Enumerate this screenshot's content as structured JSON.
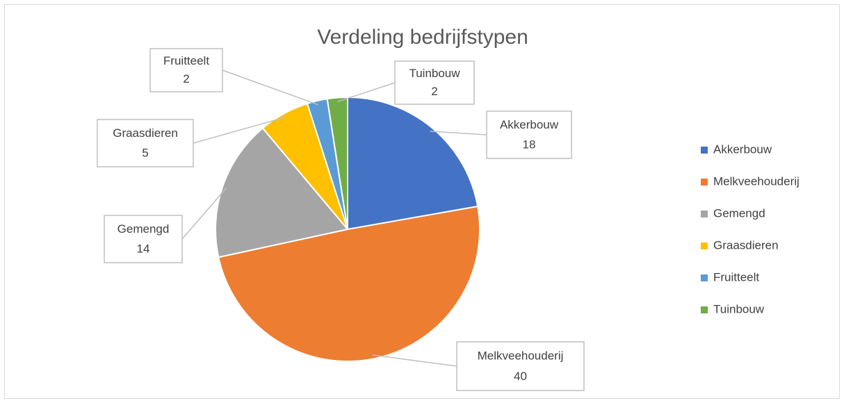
{
  "chart_data": {
    "type": "pie",
    "title": "Verdeling bedrijfstypen",
    "categories": [
      "Akkerbouw",
      "Melkveehouderij",
      "Gemengd",
      "Graasdieren",
      "Fruitteelt",
      "Tuinbouw"
    ],
    "values": [
      18,
      40,
      14,
      5,
      2,
      2
    ],
    "colors": [
      "#4472c4",
      "#ed7d31",
      "#a5a5a5",
      "#ffc000",
      "#5b9bd5",
      "#70ad47"
    ],
    "legend": "right"
  }
}
